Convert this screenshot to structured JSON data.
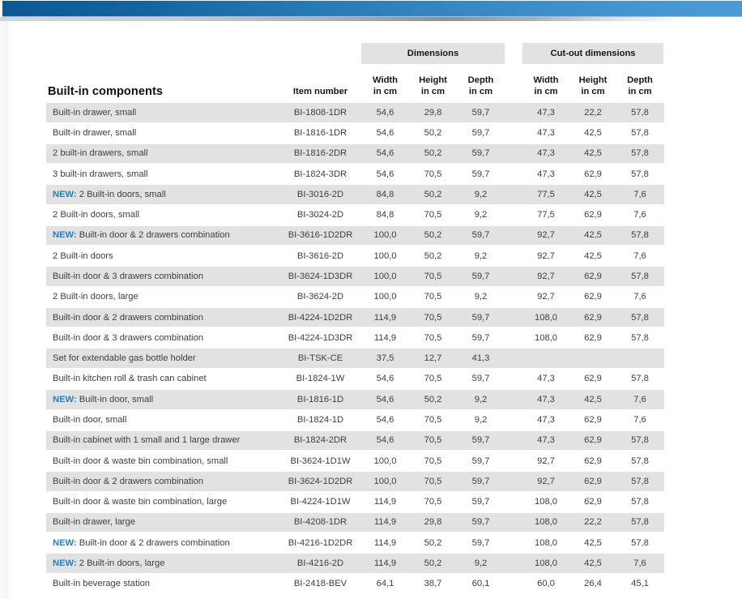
{
  "header": {
    "dimensions_label": "Dimensions",
    "cutout_label": "Cut-out dimensions",
    "table_title": "Built-in components",
    "item_number_label": "Item number",
    "col_width": "Width",
    "col_height": "Height",
    "col_depth": "Depth",
    "in_cm": "in cm"
  },
  "table": {
    "new_label": "NEW:",
    "rows": [
      {
        "new": false,
        "name": "Built-in drawer, small",
        "item": "BI-1808-1DR",
        "dims": [
          "54,6",
          "29,8",
          "59,7"
        ],
        "cutout": [
          "47,3",
          "22,2",
          "57,8"
        ]
      },
      {
        "new": false,
        "name": "Built-in drawer, small",
        "item": "BI-1816-1DR",
        "dims": [
          "54,6",
          "50,2",
          "59,7"
        ],
        "cutout": [
          "47,3",
          "42,5",
          "57,8"
        ]
      },
      {
        "new": false,
        "name": "2 built-in drawers, small",
        "item": "BI-1816-2DR",
        "dims": [
          "54,6",
          "50,2",
          "59,7"
        ],
        "cutout": [
          "47,3",
          "42,5",
          "57,8"
        ]
      },
      {
        "new": false,
        "name": "3 built-in drawers, small",
        "item": "BI-1824-3DR",
        "dims": [
          "54,6",
          "70,5",
          "59,7"
        ],
        "cutout": [
          "47,3",
          "62,9",
          "57,8"
        ]
      },
      {
        "new": true,
        "name": "2 Built-in doors, small",
        "item": "BI-3016-2D",
        "dims": [
          "84,8",
          "50,2",
          "9,2"
        ],
        "cutout": [
          "77,5",
          "42,5",
          "7,6"
        ]
      },
      {
        "new": false,
        "name": "2 Built-in doors, small",
        "item": "BI-3024-2D",
        "dims": [
          "84,8",
          "70,5",
          "9,2"
        ],
        "cutout": [
          "77,5",
          "62,9",
          "7,6"
        ]
      },
      {
        "new": true,
        "name": "Built-in door & 2 drawers combination",
        "item": "BI-3616-1D2DR",
        "dims": [
          "100,0",
          "50,2",
          "59,7"
        ],
        "cutout": [
          "92,7",
          "42,5",
          "57,8"
        ]
      },
      {
        "new": false,
        "name": "2 Built-in doors",
        "item": "BI-3616-2D",
        "dims": [
          "100,0",
          "50,2",
          "9,2"
        ],
        "cutout": [
          "92,7",
          "42,5",
          "7,6"
        ]
      },
      {
        "new": false,
        "name": "Built-in door & 3 drawers combination",
        "item": "BI-3624-1D3DR",
        "dims": [
          "100,0",
          "70,5",
          "59,7"
        ],
        "cutout": [
          "92,7",
          "62,9",
          "57,8"
        ]
      },
      {
        "new": false,
        "name": "2 Built-in doors, large",
        "item": "BI-3624-2D",
        "dims": [
          "100,0",
          "70,5",
          "9,2"
        ],
        "cutout": [
          "92,7",
          "62,9",
          "7,6"
        ]
      },
      {
        "new": false,
        "name": "Built-in door & 2 drawers combination",
        "item": "BI-4224-1D2DR",
        "dims": [
          "114,9",
          "70,5",
          "59,7"
        ],
        "cutout": [
          "108,0",
          "62,9",
          "57,8"
        ]
      },
      {
        "new": false,
        "name": "Built-in door & 3 drawers combination",
        "item": "BI-4224-1D3DR",
        "dims": [
          "114,9",
          "70,5",
          "59,7"
        ],
        "cutout": [
          "108,0",
          "62,9",
          "57,8"
        ]
      },
      {
        "new": false,
        "name": "Set for extendable gas bottle holder",
        "item": "BI-TSK-CE",
        "dims": [
          "37,5",
          "12,7",
          "41,3"
        ],
        "cutout": [
          "",
          "",
          ""
        ]
      },
      {
        "new": false,
        "name": "Built-in kitchen roll & trash can cabinet",
        "item": "BI-1824-1W",
        "dims": [
          "54,6",
          "70,5",
          "59,7"
        ],
        "cutout": [
          "47,3",
          "62,9",
          "57,8"
        ]
      },
      {
        "new": true,
        "name": "Built-in door, small",
        "item": "BI-1816-1D",
        "dims": [
          "54,6",
          "50,2",
          "9,2"
        ],
        "cutout": [
          "47,3",
          "42,5",
          "7,6"
        ]
      },
      {
        "new": false,
        "name": "Built-in door, small",
        "item": "BI-1824-1D",
        "dims": [
          "54,6",
          "70,5",
          "9,2"
        ],
        "cutout": [
          "47,3",
          "62,9",
          "7,6"
        ]
      },
      {
        "new": false,
        "name": "Built-in cabinet with 1 small and 1 large drawer",
        "item": "BI-1824-2DR",
        "dims": [
          "54,6",
          "70,5",
          "59,7"
        ],
        "cutout": [
          "47,3",
          "62,9",
          "57,8"
        ]
      },
      {
        "new": false,
        "name": "Built-in door & waste bin combination, small",
        "item": "BI-3624-1D1W",
        "dims": [
          "100,0",
          "70,5",
          "59,7"
        ],
        "cutout": [
          "92,7",
          "62,9",
          "57,8"
        ]
      },
      {
        "new": false,
        "name": "Built-in door & 2 drawers combination",
        "item": "BI-3624-1D2DR",
        "dims": [
          "100,0",
          "70,5",
          "59,7"
        ],
        "cutout": [
          "92,7",
          "62,9",
          "57,8"
        ]
      },
      {
        "new": false,
        "name": "Built-in door & waste bin combination, large",
        "item": "BI-4224-1D1W",
        "dims": [
          "114,9",
          "70,5",
          "59,7"
        ],
        "cutout": [
          "108,0",
          "62,9",
          "57,8"
        ]
      },
      {
        "new": false,
        "name": "Built-in drawer, large",
        "item": "BI-4208-1DR",
        "dims": [
          "114,9",
          "29,8",
          "59,7"
        ],
        "cutout": [
          "108,0",
          "22,2",
          "57,8"
        ]
      },
      {
        "new": true,
        "name": "Built-in door & 2 drawers combination",
        "item": "BI-4216-1D2DR",
        "dims": [
          "114,9",
          "50,2",
          "59,7"
        ],
        "cutout": [
          "108,0",
          "42,5",
          "57,8"
        ]
      },
      {
        "new": true,
        "name": "2 Built-in doors, large",
        "item": "BI-4216-2D",
        "dims": [
          "114,9",
          "50,2",
          "9,2"
        ],
        "cutout": [
          "108,0",
          "42,5",
          "7,6"
        ]
      },
      {
        "new": false,
        "name": "Built-in beverage station",
        "item": "BI-2418-BEV",
        "dims": [
          "64,1",
          "38,7",
          "60,1"
        ],
        "cutout": [
          "60,0",
          "26,4",
          "45,1"
        ]
      }
    ]
  },
  "colors": {
    "bar_gradient_left": "#0b5894",
    "bar_gradient_right": "#4a9bd6",
    "new_accent": "#2180c0",
    "row_stripe": "#e2e2e2",
    "band_bg": "#e2e2e2"
  }
}
